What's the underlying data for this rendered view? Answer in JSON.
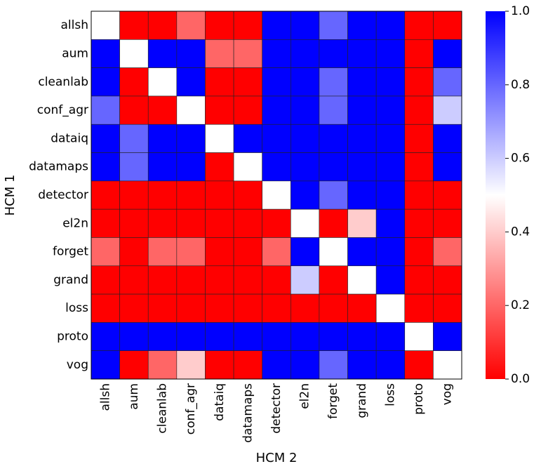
{
  "chart_data": {
    "type": "heatmap",
    "xlabel": "HCM 2",
    "ylabel": "HCM 1",
    "x_categories": [
      "allsh",
      "aum",
      "cleanlab",
      "conf_agr",
      "dataiq",
      "datamaps",
      "detector",
      "el2n",
      "forget",
      "grand",
      "loss",
      "proto",
      "vog"
    ],
    "y_categories": [
      "allsh",
      "aum",
      "cleanlab",
      "conf_agr",
      "dataiq",
      "datamaps",
      "detector",
      "el2n",
      "forget",
      "grand",
      "loss",
      "proto",
      "vog"
    ],
    "values": [
      [
        0.5,
        0.0,
        0.0,
        0.2,
        0.0,
        0.0,
        1.0,
        1.0,
        0.8,
        1.0,
        1.0,
        0.0,
        0.0
      ],
      [
        1.0,
        0.5,
        1.0,
        1.0,
        0.2,
        0.2,
        1.0,
        1.0,
        1.0,
        1.0,
        1.0,
        0.0,
        1.0
      ],
      [
        1.0,
        0.0,
        0.5,
        1.0,
        0.0,
        0.0,
        1.0,
        1.0,
        0.8,
        1.0,
        1.0,
        0.0,
        0.8
      ],
      [
        0.8,
        0.0,
        0.0,
        0.5,
        0.0,
        0.0,
        1.0,
        1.0,
        0.8,
        1.0,
        1.0,
        0.0,
        0.6
      ],
      [
        1.0,
        0.8,
        1.0,
        1.0,
        0.5,
        1.0,
        1.0,
        1.0,
        1.0,
        1.0,
        1.0,
        0.0,
        1.0
      ],
      [
        1.0,
        0.8,
        1.0,
        1.0,
        0.0,
        0.5,
        1.0,
        1.0,
        1.0,
        1.0,
        1.0,
        0.0,
        1.0
      ],
      [
        0.0,
        0.0,
        0.0,
        0.0,
        0.0,
        0.0,
        0.5,
        1.0,
        0.8,
        1.0,
        1.0,
        0.0,
        0.0
      ],
      [
        0.0,
        0.0,
        0.0,
        0.0,
        0.0,
        0.0,
        0.0,
        0.5,
        0.0,
        0.4,
        1.0,
        0.0,
        0.0
      ],
      [
        0.2,
        0.0,
        0.2,
        0.2,
        0.0,
        0.0,
        0.2,
        1.0,
        0.5,
        1.0,
        1.0,
        0.0,
        0.2
      ],
      [
        0.0,
        0.0,
        0.0,
        0.0,
        0.0,
        0.0,
        0.0,
        0.6,
        0.0,
        0.5,
        1.0,
        0.0,
        0.0
      ],
      [
        0.0,
        0.0,
        0.0,
        0.0,
        0.0,
        0.0,
        0.0,
        0.0,
        0.0,
        0.0,
        0.5,
        0.0,
        0.0
      ],
      [
        1.0,
        1.0,
        1.0,
        1.0,
        1.0,
        1.0,
        1.0,
        1.0,
        1.0,
        1.0,
        1.0,
        0.5,
        1.0
      ],
      [
        1.0,
        0.0,
        0.2,
        0.4,
        0.0,
        0.0,
        1.0,
        1.0,
        0.8,
        1.0,
        1.0,
        0.0,
        0.5
      ]
    ],
    "vmin": 0.0,
    "vmax": 1.0,
    "colormap": "bwr_r",
    "colormap_colors": {
      "low": "#ff0000",
      "mid": "#ffffff",
      "high": "#0000ff"
    },
    "colorbar": {
      "ticks": [
        0.0,
        0.2,
        0.4,
        0.6,
        0.8,
        1.0
      ],
      "tick_labels": [
        "0.0",
        "0.2",
        "0.4",
        "0.6",
        "0.8",
        "1.0"
      ],
      "placement": "right"
    }
  }
}
